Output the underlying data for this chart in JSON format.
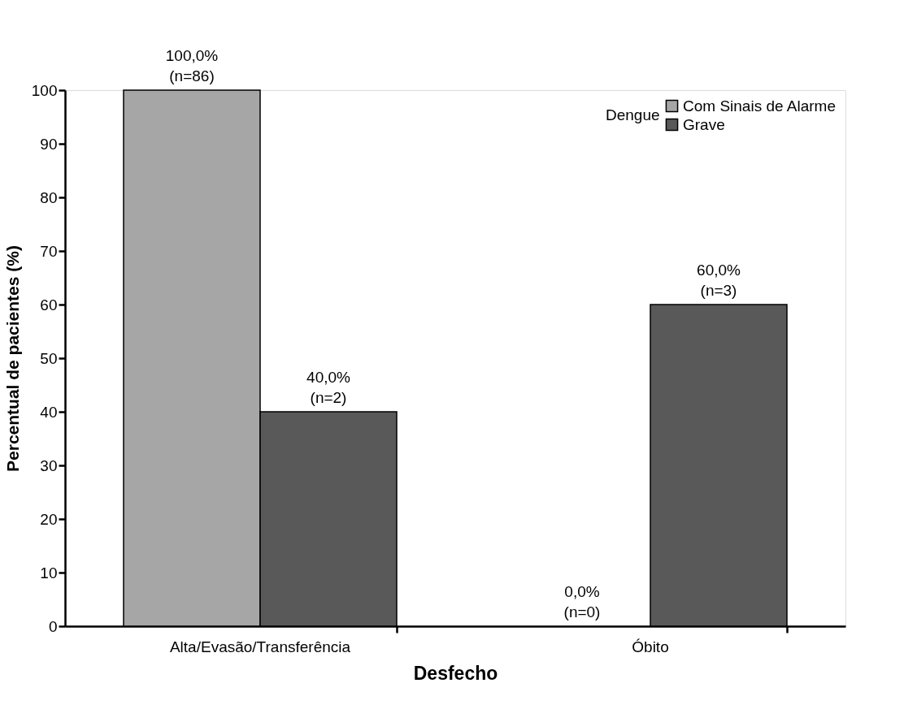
{
  "chart_data": {
    "type": "bar",
    "xlabel": "Desfecho",
    "ylabel": "Percentual de pacientes (%)",
    "legend_title": "Dengue",
    "legend": "top right",
    "grid": false,
    "categories": [
      "Alta/Evasão/Transferência",
      "Óbito"
    ],
    "series": [
      {
        "name": "Com Sinais de Alarme",
        "color": "#a6a6a6",
        "values": [
          100,
          0
        ],
        "value_labels": [
          "100,0%\n(n=86)",
          "0,0%\n(n=0)"
        ]
      },
      {
        "name": "Grave",
        "color": "#595959",
        "values": [
          40,
          60
        ],
        "value_labels": [
          "40,0%\n(n=2)",
          "60,0%\n(n=3)"
        ]
      }
    ],
    "ylim": [
      0,
      100
    ],
    "yticks": [
      0,
      10,
      20,
      30,
      40,
      50,
      60,
      70,
      80,
      90,
      100
    ]
  }
}
